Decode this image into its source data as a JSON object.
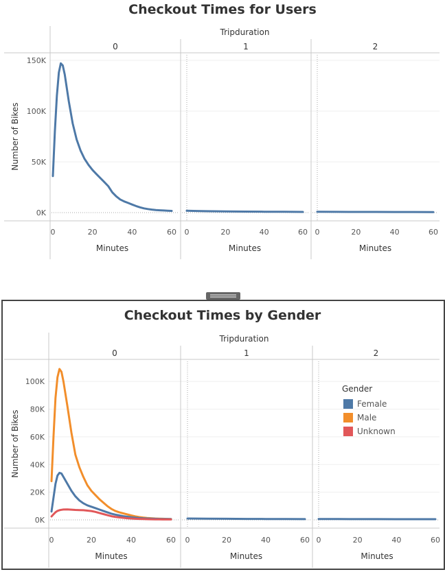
{
  "chart_data": [
    {
      "type": "line",
      "title": "Checkout Times for Users",
      "column_header": "Tripduration",
      "panels": [
        "0",
        "1",
        "2"
      ],
      "xlabel": "Minutes",
      "ylabel": "Number of Bikes",
      "xlim": [
        0,
        60
      ],
      "ylim": [
        0,
        150000
      ],
      "x_ticks": [
        "0",
        "20",
        "40",
        "60"
      ],
      "y_ticks": [
        {
          "value": 0,
          "label": "0K"
        },
        {
          "value": 50000,
          "label": "50K"
        },
        {
          "value": 100000,
          "label": "100K"
        },
        {
          "value": 150000,
          "label": "150K"
        }
      ],
      "grid": true,
      "colors": {
        "line": "#4e79a7"
      },
      "series": [
        {
          "panel": "0",
          "x": [
            0,
            1,
            2,
            3,
            4,
            5,
            6,
            8,
            10,
            12,
            14,
            16,
            18,
            20,
            22,
            24,
            26,
            28,
            30,
            32,
            34,
            36,
            38,
            40,
            42,
            44,
            46,
            48,
            50,
            52,
            54,
            56,
            58,
            60
          ],
          "values": [
            36000,
            80000,
            115000,
            138000,
            147000,
            145000,
            136000,
            110000,
            88000,
            72000,
            61000,
            53000,
            47000,
            42000,
            38000,
            34000,
            30000,
            26000,
            20000,
            16000,
            13000,
            11000,
            9500,
            8000,
            6500,
            5200,
            4200,
            3500,
            3000,
            2600,
            2300,
            2100,
            1900,
            1700
          ]
        },
        {
          "panel": "1",
          "x": [
            0,
            5,
            10,
            20,
            30,
            40,
            50,
            60
          ],
          "values": [
            1800,
            1600,
            1400,
            1200,
            1000,
            900,
            800,
            700
          ]
        },
        {
          "panel": "2",
          "x": [
            0,
            10,
            20,
            30,
            40,
            50,
            60
          ],
          "values": [
            800,
            750,
            700,
            650,
            600,
            580,
            550
          ]
        }
      ]
    },
    {
      "type": "line",
      "title": "Checkout Times by Gender",
      "column_header": "Tripduration",
      "panels": [
        "0",
        "1",
        "2"
      ],
      "xlabel": "Minutes",
      "ylabel": "Number of Bikes",
      "xlim": [
        0,
        60
      ],
      "ylim": [
        0,
        110000
      ],
      "x_ticks": [
        "0",
        "20",
        "40",
        "60"
      ],
      "y_ticks": [
        {
          "value": 0,
          "label": "0K"
        },
        {
          "value": 20000,
          "label": "20K"
        },
        {
          "value": 40000,
          "label": "40K"
        },
        {
          "value": 60000,
          "label": "60K"
        },
        {
          "value": 80000,
          "label": "80K"
        },
        {
          "value": 100000,
          "label": "100K"
        }
      ],
      "grid": true,
      "legend": {
        "title": "Gender",
        "placement": "right",
        "items": [
          {
            "label": "Female",
            "color": "#4e79a7"
          },
          {
            "label": "Male",
            "color": "#f28e2b"
          },
          {
            "label": "Unknown",
            "color": "#e15759"
          }
        ]
      },
      "series": [
        {
          "name": "Male",
          "panel": "0",
          "color": "#f28e2b",
          "x": [
            0,
            1,
            2,
            3,
            4,
            5,
            6,
            8,
            10,
            12,
            14,
            16,
            18,
            20,
            22,
            24,
            26,
            28,
            30,
            32,
            34,
            36,
            38,
            40,
            42,
            44,
            46,
            48,
            50,
            52,
            54,
            56,
            58,
            60
          ],
          "values": [
            28000,
            60000,
            88000,
            103000,
            109000,
            107000,
            100000,
            82000,
            63000,
            47000,
            38000,
            31000,
            25000,
            21000,
            18000,
            15000,
            12500,
            10000,
            8000,
            6500,
            5500,
            4700,
            4000,
            3200,
            2600,
            2100,
            1700,
            1400,
            1200,
            1000,
            900,
            800,
            700,
            600
          ]
        },
        {
          "name": "Female",
          "panel": "0",
          "color": "#4e79a7",
          "x": [
            0,
            1,
            2,
            3,
            4,
            5,
            6,
            8,
            10,
            12,
            14,
            16,
            18,
            20,
            22,
            24,
            26,
            28,
            30,
            32,
            34,
            36,
            38,
            40,
            42,
            44,
            46,
            48,
            50,
            52,
            54,
            56,
            58,
            60
          ],
          "values": [
            6000,
            16000,
            26000,
            32000,
            34000,
            33500,
            31000,
            26000,
            21000,
            17000,
            14000,
            12000,
            10500,
            9500,
            8500,
            7500,
            6500,
            5500,
            4500,
            3800,
            3200,
            2700,
            2300,
            1900,
            1600,
            1300,
            1100,
            1000,
            900,
            800,
            700,
            650,
            600,
            550
          ]
        },
        {
          "name": "Unknown",
          "panel": "0",
          "color": "#e15759",
          "x": [
            0,
            1,
            2,
            3,
            4,
            5,
            6,
            8,
            10,
            12,
            14,
            16,
            18,
            20,
            22,
            24,
            26,
            28,
            30,
            32,
            34,
            36,
            38,
            40,
            42,
            44,
            46,
            48,
            50,
            52,
            54,
            56,
            58,
            60
          ],
          "values": [
            2500,
            4000,
            5500,
            6500,
            7000,
            7300,
            7500,
            7600,
            7400,
            7200,
            7100,
            7000,
            6700,
            6400,
            5800,
            5000,
            4200,
            3400,
            2700,
            2200,
            1800,
            1500,
            1200,
            1000,
            800,
            700,
            600,
            500,
            450,
            400,
            350,
            320,
            300,
            280
          ]
        },
        {
          "name": "Female",
          "panel": "1",
          "color": "#4e79a7",
          "x": [
            0,
            10,
            20,
            30,
            40,
            50,
            60
          ],
          "values": [
            1000,
            900,
            800,
            700,
            650,
            600,
            550
          ]
        },
        {
          "name": "Female",
          "panel": "2",
          "color": "#4e79a7",
          "x": [
            0,
            10,
            20,
            30,
            40,
            50,
            60
          ],
          "values": [
            600,
            580,
            560,
            540,
            520,
            500,
            480
          ]
        }
      ]
    }
  ]
}
